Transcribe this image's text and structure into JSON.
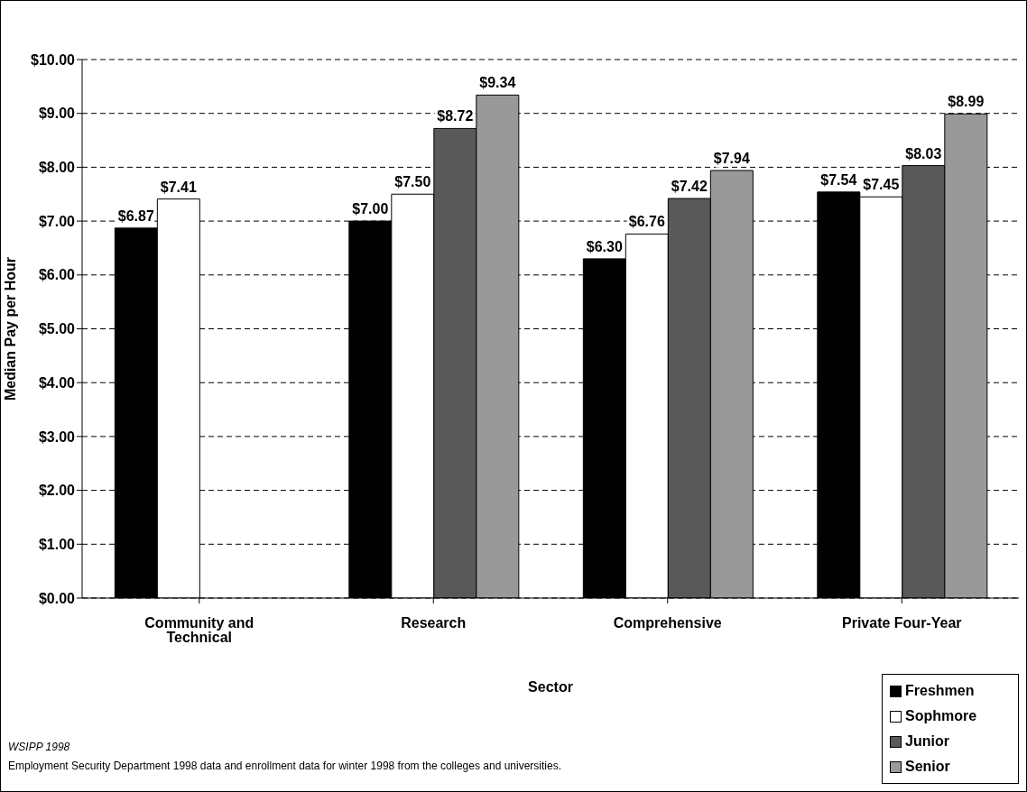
{
  "chart_data": {
    "type": "bar",
    "xlabel": "Sector",
    "ylabel": "Median Pay per Hour",
    "categories": [
      "Community and Technical",
      "Research",
      "Comprehensive",
      "Private Four-Year"
    ],
    "series": [
      {
        "name": "Freshmen",
        "color": "#000000",
        "values": [
          6.87,
          7.0,
          6.3,
          7.54
        ],
        "value_labels": [
          "$6.87",
          "$7.00",
          "$6.30",
          "$7.54"
        ]
      },
      {
        "name": "Sophmore",
        "color": "#ffffff",
        "values": [
          7.41,
          7.5,
          6.76,
          7.45
        ],
        "value_labels": [
          "$7.41",
          "$7.50",
          "$6.76",
          "$7.45"
        ]
      },
      {
        "name": "Junior",
        "color": "#595959",
        "values": [
          null,
          8.72,
          7.42,
          8.03
        ],
        "value_labels": [
          null,
          "$8.72",
          "$7.42",
          "$8.03"
        ]
      },
      {
        "name": "Senior",
        "color": "#999999",
        "values": [
          null,
          9.34,
          7.94,
          8.99
        ],
        "value_labels": [
          null,
          "$9.34",
          "$7.94",
          "$8.99"
        ]
      }
    ],
    "ylim": [
      0,
      10
    ],
    "yticks": [
      {
        "value": 0,
        "label": "$0.00"
      },
      {
        "value": 1,
        "label": "$1.00"
      },
      {
        "value": 2,
        "label": "$2.00"
      },
      {
        "value": 3,
        "label": "$3.00"
      },
      {
        "value": 4,
        "label": "$4.00"
      },
      {
        "value": 5,
        "label": "$5.00"
      },
      {
        "value": 6,
        "label": "$6.00"
      },
      {
        "value": 7,
        "label": "$7.00"
      },
      {
        "value": 8,
        "label": "$8.00"
      },
      {
        "value": 9,
        "label": "$9.00"
      },
      {
        "value": 10,
        "label": "$10.00"
      }
    ],
    "grid": "y",
    "legend": "bottom right",
    "annotations": [
      "WSIPP 1998",
      "Employment Security Department 1998 data and enrollment data for winter 1998 from the colleges and universities."
    ]
  }
}
